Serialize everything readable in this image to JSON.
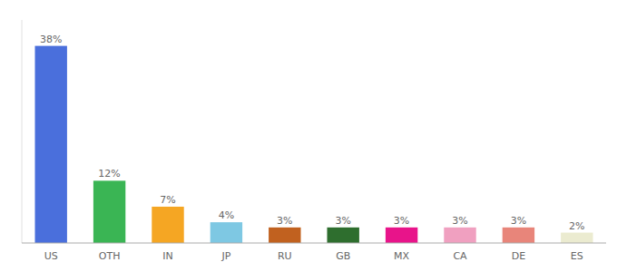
{
  "chart_data": {
    "type": "bar",
    "categories": [
      "US",
      "OTH",
      "IN",
      "JP",
      "RU",
      "GB",
      "MX",
      "CA",
      "DE",
      "ES"
    ],
    "values": [
      38,
      12,
      7,
      4,
      3,
      3,
      3,
      3,
      3,
      2
    ],
    "value_labels": [
      "38%",
      "12%",
      "7%",
      "4%",
      "3%",
      "3%",
      "3%",
      "3%",
      "3%",
      "2%"
    ],
    "colors": [
      "#4a6fdc",
      "#3ab554",
      "#f5a623",
      "#7ec8e3",
      "#c1611f",
      "#2e6e2e",
      "#e8148a",
      "#f0a0c0",
      "#e8857a",
      "#ebebd0"
    ],
    "ylim": [
      0,
      43
    ],
    "data_labels": true,
    "tick_labels": "x"
  }
}
